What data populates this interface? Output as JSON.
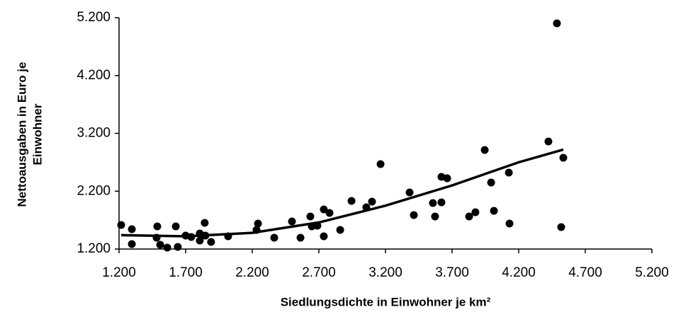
{
  "chart_data": {
    "type": "scatter",
    "xlabel": "Siedlungsdichte in Einwohner je km²",
    "ylabel": [
      "Nettoausgaben in Euro je",
      "Einwohner"
    ],
    "color": "#000000",
    "x": [
      1216,
      1296,
      1296,
      1487,
      1482,
      1509,
      1562,
      1626,
      1641,
      1700,
      1742,
      1806,
      1806,
      1843,
      1848,
      1891,
      2019,
      2232,
      2243,
      2365,
      2498,
      2562,
      2636,
      2647,
      2689,
      2737,
      2737,
      2780,
      2860,
      2945,
      3056,
      3099,
      3163,
      3381,
      3413,
      3556,
      3572,
      3620,
      3620,
      3663,
      3828,
      3875,
      3945,
      3993,
      4014,
      4126,
      4131,
      4423,
      4487,
      4519,
      4535
    ],
    "values": [
      1616,
      1543,
      1286,
      1591,
      1396,
      1273,
      1224,
      1591,
      1237,
      1432,
      1408,
      1469,
      1347,
      1653,
      1432,
      1322,
      1420,
      1530,
      1640,
      1396,
      1677,
      1396,
      1763,
      1591,
      1604,
      1420,
      1885,
      1824,
      1530,
      2032,
      1922,
      2020,
      2668,
      2179,
      1787,
      1995,
      1763,
      2448,
      2007,
      2423,
      1763,
      1836,
      2912,
      2350,
      1861,
      2521,
      1640,
      3059,
      5102,
      1579,
      2778
    ],
    "trendline": {
      "x": [
        1216,
        1700,
        2200,
        2700,
        3200,
        3700,
        4200,
        4535
      ],
      "values": [
        1440,
        1420,
        1480,
        1660,
        1950,
        2300,
        2700,
        2920
      ]
    },
    "xlim": [
      1200,
      5200
    ],
    "xticks": [
      {
        "value": 1200,
        "label": "1.200"
      },
      {
        "value": 1700,
        "label": "1.700"
      },
      {
        "value": 2200,
        "label": "2.200"
      },
      {
        "value": 2700,
        "label": "2.700"
      },
      {
        "value": 3200,
        "label": "3.200"
      },
      {
        "value": 3700,
        "label": "3.700"
      },
      {
        "value": 4200,
        "label": "4.200"
      },
      {
        "value": 4700,
        "label": "4.700"
      },
      {
        "value": 5200,
        "label": "5.200"
      }
    ],
    "ylim": [
      1200,
      5200
    ],
    "yticks": [
      {
        "value": 1200,
        "label": "1.200"
      },
      {
        "value": 2200,
        "label": "2.200"
      },
      {
        "value": 3200,
        "label": "3.200"
      },
      {
        "value": 4200,
        "label": "4.200"
      },
      {
        "value": 5200,
        "label": "5.200"
      }
    ]
  }
}
